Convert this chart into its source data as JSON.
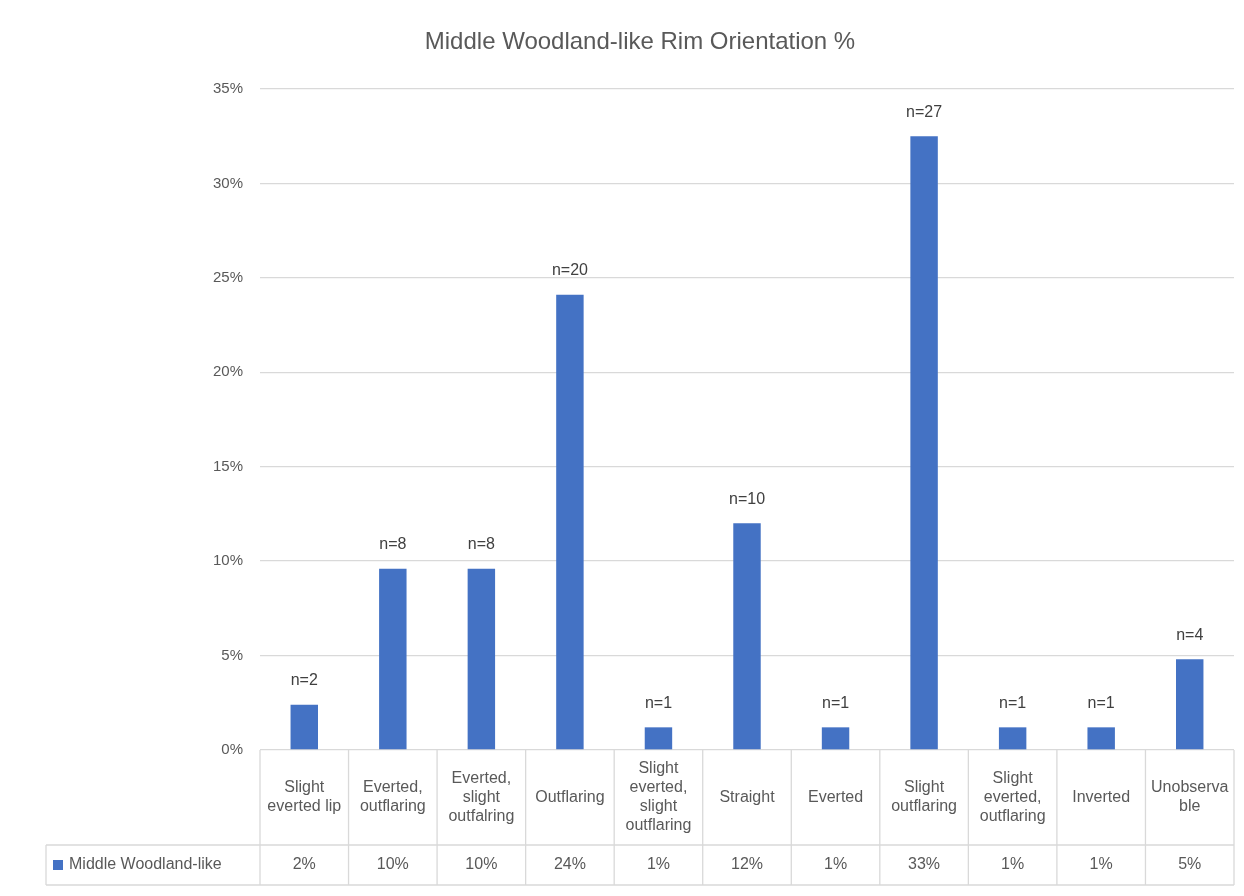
{
  "chart_data": {
    "type": "bar",
    "title": "Middle Woodland-like Rim Orientation %",
    "categories": [
      "Slight everted lip",
      "Everted, outflaring",
      "Everted, slight outfalring",
      "Outflaring",
      "Slight everted, slight outflaring",
      "Straight",
      "Everted",
      "Slight outflaring",
      "Slight everted, outflaring",
      "Inverted",
      "Unobservable"
    ],
    "series": [
      {
        "name": "Middle Woodland-like",
        "color": "#4472c4",
        "values": [
          2.4,
          9.6,
          9.6,
          24.1,
          1.2,
          12.0,
          1.2,
          32.5,
          1.2,
          1.2,
          4.8
        ],
        "value_labels": [
          "2%",
          "10%",
          "10%",
          "24%",
          "1%",
          "12%",
          "1%",
          "33%",
          "1%",
          "1%",
          "5%"
        ]
      }
    ],
    "ylim": [
      0,
      35
    ],
    "yticks": [
      {
        "value": 0,
        "label": "0%"
      },
      {
        "value": 5,
        "label": "5%"
      },
      {
        "value": 10,
        "label": "10%"
      },
      {
        "value": 15,
        "label": "15%"
      },
      {
        "value": 20,
        "label": "20%"
      },
      {
        "value": 25,
        "label": "25%"
      },
      {
        "value": 30,
        "label": "30%"
      },
      {
        "value": 35,
        "label": "35%"
      }
    ],
    "grid": "y",
    "legend": "bottom left",
    "annotations": [
      {
        "text": "n=2",
        "x": "Slight everted lip",
        "y": 2.4
      },
      {
        "text": "n=8",
        "x": "Everted, outflaring",
        "y": 9.6
      },
      {
        "text": "n=8",
        "x": "Everted, slight outfalring",
        "y": 9.6
      },
      {
        "text": "n=20",
        "x": "Outflaring",
        "y": 24.1
      },
      {
        "text": "n=1",
        "x": "Slight everted, slight outflaring",
        "y": 1.2
      },
      {
        "text": "n=10",
        "x": "Straight",
        "y": 12.0
      },
      {
        "text": "n=1",
        "x": "Everted",
        "y": 1.2
      },
      {
        "text": "n=27",
        "x": "Slight outflaring",
        "y": 32.5
      },
      {
        "text": "n=1",
        "x": "Slight everted, outflaring",
        "y": 1.2
      },
      {
        "text": "n=1",
        "x": "Inverted",
        "y": 1.2
      },
      {
        "text": "n=4",
        "x": "Unobservable",
        "y": 4.8
      }
    ]
  }
}
